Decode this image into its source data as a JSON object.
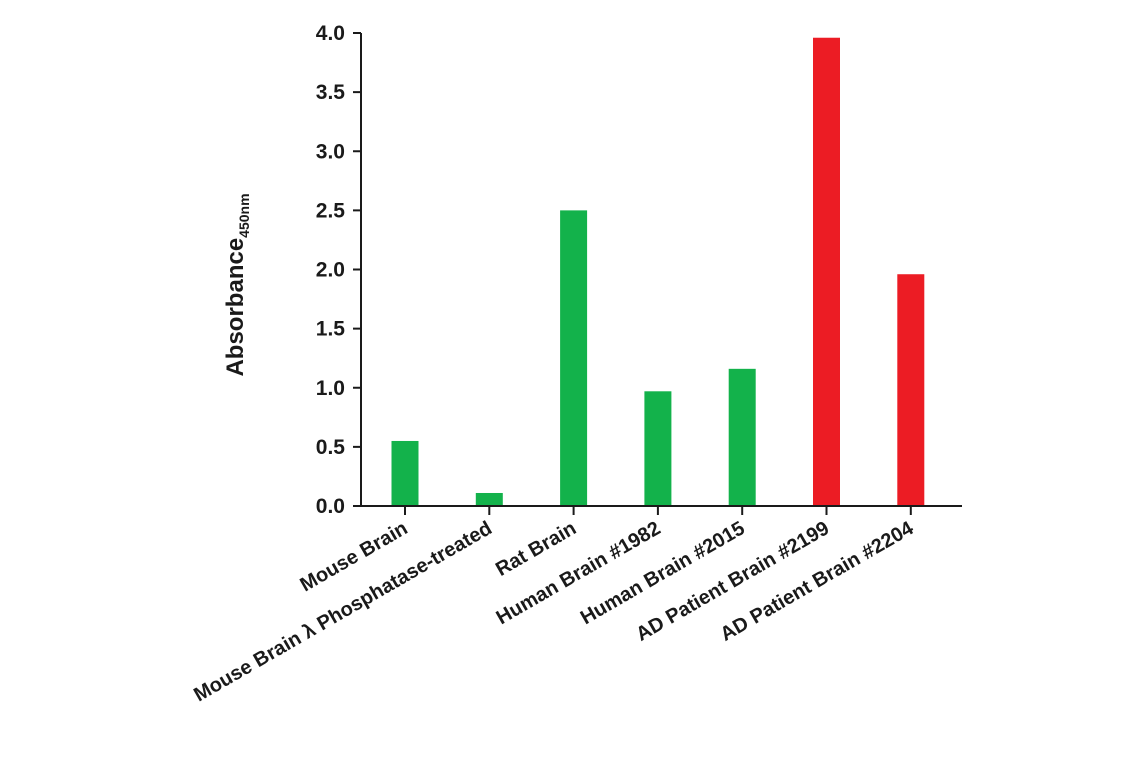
{
  "chart_data": {
    "type": "bar",
    "title": "",
    "xlabel": "",
    "ylabel": "Absorbance",
    "ylabel_subscript": "450nm",
    "ylim": [
      0,
      4.0
    ],
    "yticks": [
      "0.0",
      "0.5",
      "1.0",
      "1.5",
      "2.0",
      "2.5",
      "3.0",
      "3.5",
      "4.0"
    ],
    "grid": false,
    "legend": "none",
    "categories": [
      "Mouse Brain",
      "Mouse Brain λ Phosphatase-treated",
      "Rat Brain",
      "Human Brain #1982",
      "Human Brain #2015",
      "AD Patient Brain #2199",
      "AD Patient Brain #2204"
    ],
    "values": [
      0.55,
      0.11,
      2.5,
      0.97,
      1.16,
      3.96,
      1.96
    ],
    "bar_colors": [
      "#13b24b",
      "#13b24b",
      "#13b24b",
      "#13b24b",
      "#13b24b",
      "#ec1c24",
      "#ec1c24"
    ]
  }
}
